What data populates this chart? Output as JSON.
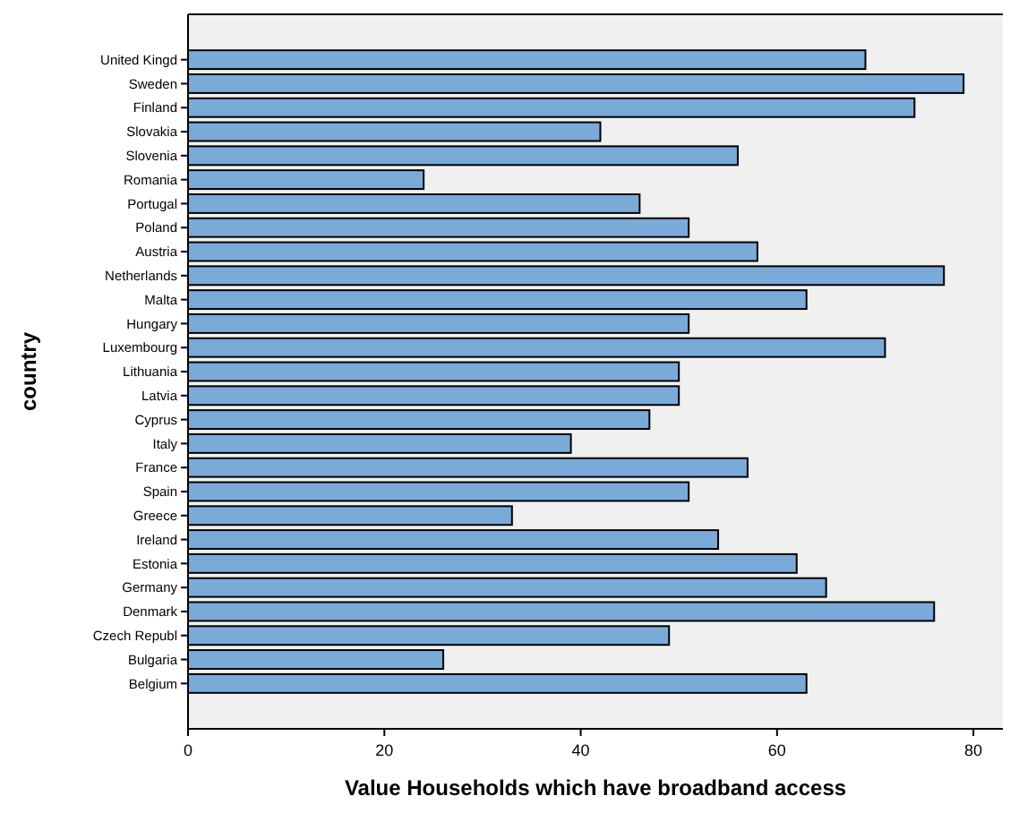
{
  "chart_data": {
    "type": "bar",
    "orientation": "horizontal",
    "xlabel": "Value Households which have broadband access",
    "ylabel": "country",
    "categories": [
      "United Kingd",
      "Sweden",
      "Finland",
      "Slovakia",
      "Slovenia",
      "Romania",
      "Portugal",
      "Poland",
      "Austria",
      "Netherlands",
      "Malta",
      "Hungary",
      "Luxembourg",
      "Lithuania",
      "Latvia",
      "Cyprus",
      "Italy",
      "France",
      "Spain",
      "Greece",
      "Ireland",
      "Estonia",
      "Germany",
      "Denmark",
      "Czech Republ",
      "Bulgaria",
      "Belgium"
    ],
    "values": [
      69,
      79,
      74,
      42,
      56,
      24,
      46,
      51,
      58,
      77,
      63,
      51,
      71,
      50,
      50,
      47,
      39,
      57,
      51,
      33,
      54,
      62,
      65,
      76,
      49,
      26,
      63
    ],
    "color": "#7aaad8",
    "xlim": [
      0,
      83
    ],
    "xticks": [
      0,
      20,
      40,
      60,
      80
    ],
    "grid": false
  }
}
